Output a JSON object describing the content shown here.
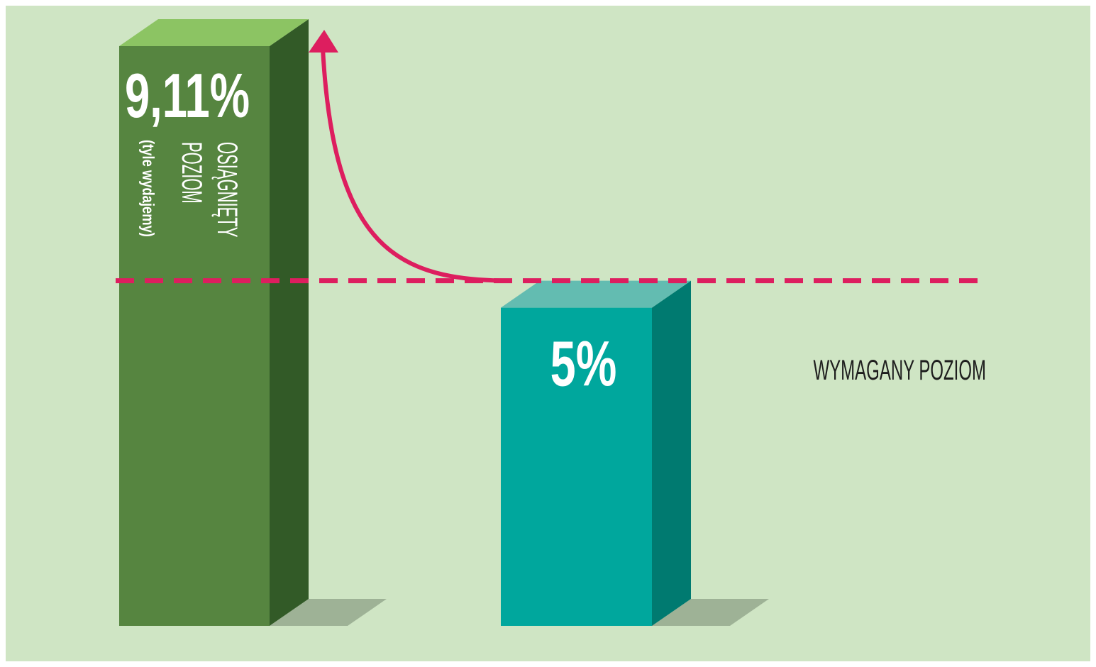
{
  "chart_data": {
    "type": "bar",
    "title": "",
    "xlabel": "",
    "ylabel": "",
    "ylim": [
      0,
      10
    ],
    "categories": [
      "",
      ""
    ],
    "values": [
      9.11,
      5
    ],
    "value_labels": [
      "9,11%",
      "5%"
    ],
    "bar_caption": {
      "line1": "OSIĄGNIĘTY",
      "line2": "POZIOM",
      "line3": "(tyle wydajemy)"
    },
    "reference_line": {
      "value": 5,
      "label": "WYMAGANY POZIOM",
      "style": "dashed"
    },
    "arrow": {
      "from_value": 5,
      "to_value": 9.11
    },
    "grid": false,
    "legend": "none"
  },
  "colors": {
    "background": "#cfe5c4",
    "bar1_front": "#568540",
    "bar1_side": "#325a27",
    "bar1_top": "#8cc463",
    "bar2_front": "#00a79d",
    "bar2_side": "#007a70",
    "bar2_top": "#63bcb1",
    "shadow": "#9eb296",
    "accent": "#dd1e5f"
  }
}
